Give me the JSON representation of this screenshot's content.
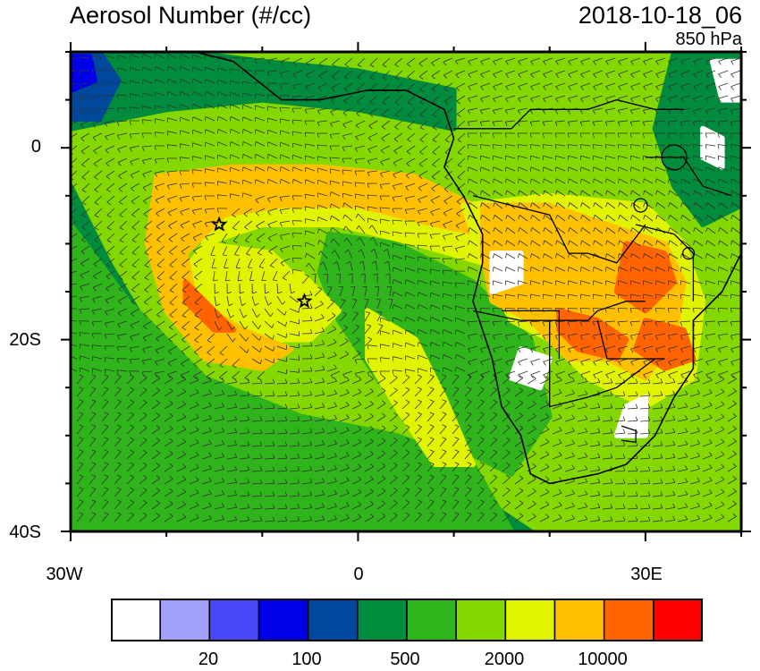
{
  "header": {
    "title": "Aerosol Number (#/cc)",
    "timestamp": "2018-10-18_06",
    "level": "850 hPa"
  },
  "axes": {
    "lon_range": [
      -30,
      40
    ],
    "lat_range": [
      -40,
      10
    ],
    "x_ticks": [
      {
        "lon": -30,
        "label": "30W"
      },
      {
        "lon": 0,
        "label": "0"
      },
      {
        "lon": 30,
        "label": "30E"
      }
    ],
    "y_ticks": [
      {
        "lat": 0,
        "label": "0"
      },
      {
        "lat": -20,
        "label": "20S"
      },
      {
        "lat": -40,
        "label": "40S"
      }
    ]
  },
  "colorbar": {
    "colors": [
      "#ffffff",
      "#a0a0f8",
      "#4848f8",
      "#0000e8",
      "#00489c",
      "#008c3c",
      "#30b41c",
      "#84d800",
      "#e0f400",
      "#ffc000",
      "#ff6400",
      "#ff0000"
    ],
    "labels": [
      {
        "label": "20",
        "boundary": 2
      },
      {
        "label": "100",
        "boundary": 4
      },
      {
        "label": "500",
        "boundary": 6
      },
      {
        "label": "2000",
        "boundary": 8
      },
      {
        "label": "10000",
        "boundary": 10
      }
    ]
  },
  "markers": [
    {
      "name": "star-marker-west",
      "lon": -14.5,
      "lat": -8
    },
    {
      "name": "star-marker-east",
      "lon": -5.6,
      "lat": -16
    }
  ],
  "field": {
    "background_color": "#84d800",
    "regions": [
      {
        "color": "#008c3c",
        "points": [
          [
            -30,
            10
          ],
          [
            -18,
            10
          ],
          [
            -10,
            9
          ],
          [
            0,
            8
          ],
          [
            10,
            6
          ],
          [
            10,
            2
          ],
          [
            0,
            4
          ],
          [
            -10,
            5
          ],
          [
            -20,
            4
          ],
          [
            -30,
            2
          ]
        ]
      },
      {
        "color": "#00489c",
        "points": [
          [
            -30,
            10
          ],
          [
            -27,
            10
          ],
          [
            -25,
            7
          ],
          [
            -27,
            3
          ],
          [
            -30,
            3
          ]
        ]
      },
      {
        "color": "#0000e8",
        "points": [
          [
            -30,
            9.5
          ],
          [
            -28,
            9.5
          ],
          [
            -27.5,
            7
          ],
          [
            -30,
            6
          ]
        ]
      },
      {
        "color": "#008c3c",
        "points": [
          [
            -30,
            -4
          ],
          [
            -26,
            -12
          ],
          [
            -20,
            -22
          ],
          [
            -10,
            -28
          ],
          [
            0,
            -32
          ],
          [
            12,
            -36
          ],
          [
            18,
            -40
          ],
          [
            -30,
            -40
          ]
        ]
      },
      {
        "color": "#30b41c",
        "points": [
          [
            -30,
            -8
          ],
          [
            -24,
            -16
          ],
          [
            -16,
            -24
          ],
          [
            -6,
            -28
          ],
          [
            4,
            -30
          ],
          [
            12,
            -33
          ],
          [
            16,
            -40
          ],
          [
            -30,
            -40
          ]
        ]
      },
      {
        "color": "#30b41c",
        "points": [
          [
            -3,
            -9
          ],
          [
            4,
            -10
          ],
          [
            12,
            -14
          ],
          [
            18,
            -20
          ],
          [
            20,
            -28
          ],
          [
            16,
            -34
          ],
          [
            8,
            -30
          ],
          [
            2,
            -24
          ],
          [
            -2,
            -18
          ],
          [
            -4,
            -13
          ]
        ]
      },
      {
        "color": "#e0f400",
        "points": [
          [
            1,
            -17
          ],
          [
            6,
            -20
          ],
          [
            9,
            -26
          ],
          [
            12,
            -33
          ],
          [
            8,
            -33
          ],
          [
            4,
            -27
          ],
          [
            1,
            -22
          ]
        ]
      },
      {
        "color": "#e0f400",
        "points": [
          [
            -20,
            -3
          ],
          [
            -12,
            -3
          ],
          [
            -2,
            -3
          ],
          [
            6,
            -4
          ],
          [
            12,
            -8
          ],
          [
            13,
            -12
          ],
          [
            6,
            -10
          ],
          [
            -2,
            -8
          ],
          [
            -10,
            -8
          ],
          [
            -16,
            -10
          ],
          [
            -19,
            -14
          ],
          [
            -18,
            -18
          ],
          [
            -12,
            -20
          ],
          [
            -5,
            -20
          ],
          [
            -2,
            -17
          ],
          [
            -6,
            -13
          ],
          [
            -11,
            -13
          ],
          [
            -15,
            -15
          ],
          [
            -14,
            -18
          ],
          [
            -8,
            -18
          ],
          [
            -5,
            -15
          ],
          [
            -9,
            -11
          ],
          [
            -16,
            -10
          ]
        ]
      },
      {
        "color": "#ffc000",
        "points": [
          [
            -21,
            -3
          ],
          [
            -13,
            -2
          ],
          [
            -4,
            -2
          ],
          [
            6,
            -3
          ],
          [
            12,
            -6
          ],
          [
            13,
            -9
          ],
          [
            8,
            -8
          ],
          [
            0,
            -6
          ],
          [
            -8,
            -6
          ],
          [
            -14,
            -7
          ],
          [
            -18,
            -11
          ],
          [
            -17,
            -16
          ],
          [
            -12,
            -19
          ],
          [
            -7,
            -21
          ],
          [
            -10,
            -23
          ],
          [
            -16,
            -22
          ],
          [
            -20,
            -17
          ],
          [
            -22,
            -10
          ]
        ]
      },
      {
        "color": "#ff6400",
        "points": [
          [
            -18,
            -14
          ],
          [
            -15,
            -17
          ],
          [
            -13,
            -19
          ],
          [
            -15,
            -19
          ],
          [
            -18,
            -16
          ]
        ]
      },
      {
        "color": "#e0f400",
        "points": [
          [
            11,
            -6
          ],
          [
            20,
            -5
          ],
          [
            30,
            -6
          ],
          [
            34,
            -10
          ],
          [
            36,
            -16
          ],
          [
            35,
            -24
          ],
          [
            30,
            -27
          ],
          [
            24,
            -24
          ],
          [
            20,
            -20
          ],
          [
            16,
            -18
          ],
          [
            13,
            -12
          ]
        ]
      },
      {
        "color": "#ffc000",
        "points": [
          [
            13,
            -6
          ],
          [
            20,
            -6
          ],
          [
            26,
            -8
          ],
          [
            32,
            -10
          ],
          [
            34,
            -14
          ],
          [
            33,
            -20
          ],
          [
            30,
            -24
          ],
          [
            26,
            -22
          ],
          [
            22,
            -22
          ],
          [
            18,
            -18
          ],
          [
            14,
            -16
          ],
          [
            13,
            -11
          ]
        ]
      },
      {
        "color": "#ff6400",
        "points": [
          [
            28,
            -10
          ],
          [
            32,
            -11
          ],
          [
            33,
            -14
          ],
          [
            30,
            -17
          ],
          [
            27,
            -15
          ]
        ]
      },
      {
        "color": "#ff6400",
        "points": [
          [
            21,
            -17
          ],
          [
            25,
            -18
          ],
          [
            28,
            -20
          ],
          [
            27,
            -22
          ],
          [
            23,
            -21
          ],
          [
            21,
            -19
          ]
        ]
      },
      {
        "color": "#ff6400",
        "points": [
          [
            30,
            -18
          ],
          [
            34,
            -19
          ],
          [
            35,
            -22
          ],
          [
            32,
            -23
          ],
          [
            29,
            -21
          ]
        ]
      },
      {
        "color": "#008c3c",
        "points": [
          [
            33,
            10
          ],
          [
            40,
            10
          ],
          [
            40,
            -6
          ],
          [
            36,
            -8
          ],
          [
            33,
            -4
          ],
          [
            31,
            2
          ]
        ]
      },
      {
        "color": "#ffffff",
        "points": [
          [
            14,
            -11
          ],
          [
            17,
            -11
          ],
          [
            17,
            -14
          ],
          [
            14,
            -15
          ]
        ]
      },
      {
        "color": "#ffffff",
        "points": [
          [
            17,
            -21
          ],
          [
            20,
            -22
          ],
          [
            19,
            -25
          ],
          [
            16,
            -24
          ]
        ]
      },
      {
        "color": "#ffffff",
        "points": [
          [
            28,
            -27
          ],
          [
            30,
            -26
          ],
          [
            30,
            -30
          ],
          [
            27,
            -30
          ]
        ]
      },
      {
        "color": "#ffffff",
        "points": [
          [
            36,
            2
          ],
          [
            38,
            1
          ],
          [
            38,
            -2
          ],
          [
            36,
            -1
          ]
        ]
      },
      {
        "color": "#ffffff",
        "points": [
          [
            37,
            9
          ],
          [
            40,
            9
          ],
          [
            40,
            5
          ],
          [
            38,
            5
          ]
        ]
      }
    ],
    "coastline": [
      [
        -17,
        10
      ],
      [
        -13,
        9
      ],
      [
        -8,
        5
      ],
      [
        -4,
        5
      ],
      [
        1,
        6
      ],
      [
        5,
        6
      ],
      [
        9,
        4
      ],
      [
        10,
        1
      ],
      [
        9,
        -2
      ],
      [
        11,
        -5
      ],
      [
        13,
        -9
      ],
      [
        13,
        -12
      ],
      [
        12,
        -16
      ],
      [
        14,
        -22
      ],
      [
        15,
        -27
      ],
      [
        17,
        -30
      ],
      [
        18,
        -34
      ],
      [
        20,
        -35
      ],
      [
        25,
        -34
      ],
      [
        28,
        -33
      ],
      [
        31,
        -30
      ],
      [
        33,
        -26
      ],
      [
        35,
        -23
      ],
      [
        35,
        -18
      ],
      [
        38,
        -15
      ],
      [
        40,
        -11
      ],
      [
        40,
        10
      ]
    ],
    "borders": [
      [
        [
          10,
          2
        ],
        [
          16,
          2
        ],
        [
          18,
          4
        ],
        [
          24,
          4
        ],
        [
          27,
          5
        ],
        [
          31,
          4
        ],
        [
          34,
          4
        ]
      ],
      [
        [
          12,
          -5
        ],
        [
          16,
          -6
        ],
        [
          20,
          -7
        ],
        [
          22,
          -11
        ],
        [
          24,
          -11
        ],
        [
          27,
          -12
        ],
        [
          30,
          -8
        ]
      ],
      [
        [
          12,
          -17
        ],
        [
          17,
          -18
        ],
        [
          21,
          -18
        ],
        [
          24,
          -18
        ],
        [
          25,
          -17
        ],
        [
          28,
          -16
        ],
        [
          30,
          -16
        ]
      ],
      [
        [
          20,
          -18
        ],
        [
          20,
          -22
        ],
        [
          20,
          -27
        ],
        [
          24,
          -26
        ],
        [
          27,
          -25
        ],
        [
          31,
          -22
        ]
      ],
      [
        [
          25,
          -18
        ],
        [
          26,
          -22
        ],
        [
          29,
          -22
        ],
        [
          32,
          -22
        ]
      ],
      [
        [
          15,
          -17
        ],
        [
          21,
          -17
        ],
        [
          21,
          -22
        ]
      ],
      [
        [
          29,
          -8
        ],
        [
          33,
          -9
        ],
        [
          35,
          -11
        ],
        [
          35,
          -16
        ]
      ],
      [
        [
          30,
          -1
        ],
        [
          34,
          -1
        ],
        [
          36,
          -4
        ],
        [
          39,
          -5
        ]
      ],
      [
        [
          27.5,
          -29
        ],
        [
          29,
          -29.5
        ],
        [
          29,
          -30.7
        ],
        [
          27.5,
          -30.5
        ]
      ]
    ],
    "lakes": [
      {
        "lon": 33,
        "lat": -1,
        "r": 1.3
      },
      {
        "lon": 29.5,
        "lat": -6,
        "r": 0.7
      },
      {
        "lon": 34.5,
        "lat": -11,
        "r": 0.6
      }
    ]
  }
}
